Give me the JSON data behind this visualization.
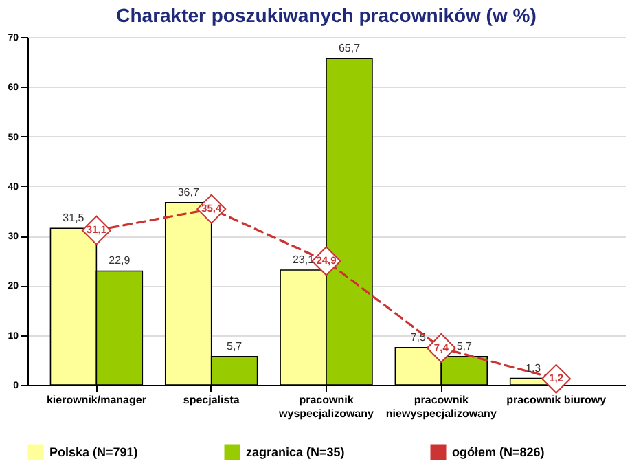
{
  "chart_data": {
    "type": "bar",
    "title": "Charakter poszukiwanych pracowników (w %)",
    "categories": [
      "kierownik/manager",
      "specjalista",
      "pracownik\nwyspecjalizowany",
      "pracownik\nniewyspecjalizowany",
      "pracownik biurowy"
    ],
    "series": [
      {
        "name": "Polska (N=791)",
        "color": "#ffff99",
        "values": [
          31.5,
          36.7,
          23.1,
          7.5,
          1.3
        ],
        "value_labels": [
          "31,5",
          "36,7",
          "23,1",
          "7,5",
          "1,3"
        ]
      },
      {
        "name": "zagranica (N=35)",
        "color": "#99cc00",
        "values": [
          22.9,
          5.7,
          65.7,
          5.7,
          null
        ],
        "value_labels": [
          "22,9",
          "5,7",
          "65,7",
          "5,7",
          null
        ]
      },
      {
        "name": "ogółem (N=826)",
        "type": "line",
        "color": "#cc3333",
        "marker": "diamond",
        "line_style": "dashed",
        "values": [
          31.1,
          35.4,
          24.9,
          7.4,
          1.2
        ],
        "value_labels": [
          "31,1",
          "35,4",
          "24,9",
          "7,4",
          "1,2"
        ]
      }
    ],
    "ylim": [
      0,
      70
    ],
    "yticks": [
      0,
      10,
      20,
      30,
      40,
      50,
      60,
      70
    ],
    "grid": "y",
    "legend": "bottom"
  }
}
